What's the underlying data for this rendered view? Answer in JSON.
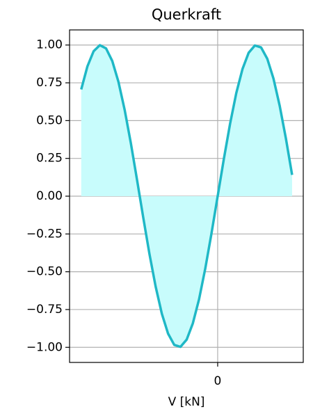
{
  "chart_data": {
    "type": "area",
    "title": "Querkraft",
    "x_label": "V [kN]",
    "x": [
      -5.5,
      -5.25,
      -5.0,
      -4.75,
      -4.5,
      -4.25,
      -4.0,
      -3.75,
      -3.5,
      -3.25,
      -3.0,
      -2.75,
      -2.5,
      -2.25,
      -2.0,
      -1.75,
      -1.5,
      -1.25,
      -1.0,
      -0.75,
      -0.5,
      -0.25,
      0,
      0.25,
      0.5,
      0.75,
      1.0,
      1.25,
      1.5,
      1.75,
      2.0,
      2.25,
      2.5,
      2.75,
      3.0
    ],
    "values": [
      0.706,
      0.859,
      0.959,
      0.999,
      0.978,
      0.895,
      0.757,
      0.572,
      0.351,
      0.108,
      -0.141,
      -0.382,
      -0.598,
      -0.778,
      -0.909,
      -0.984,
      -0.997,
      -0.949,
      -0.841,
      -0.682,
      -0.479,
      -0.247,
      0,
      0.247,
      0.479,
      0.682,
      0.841,
      0.949,
      0.997,
      0.984,
      0.909,
      0.778,
      0.598,
      0.382,
      0.141
    ],
    "color": "#1fb8c6",
    "fill_color": "#c8fcfc",
    "xlim": [
      -5.97,
      3.45
    ],
    "ylim": [
      -1.1,
      1.1
    ],
    "xticks": [
      0
    ],
    "yticks": [
      {
        "value": -1,
        "label": "−1.00"
      },
      {
        "value": -0.75,
        "label": "−0.75"
      },
      {
        "value": -0.5,
        "label": "−0.50"
      },
      {
        "value": -0.25,
        "label": "−0.25"
      },
      {
        "value": 0,
        "label": "0.00"
      },
      {
        "value": 0.25,
        "label": "0.25"
      },
      {
        "value": 0.5,
        "label": "0.50"
      },
      {
        "value": 0.75,
        "label": "0.75"
      },
      {
        "value": 1,
        "label": "1.00"
      }
    ],
    "grid": true
  }
}
